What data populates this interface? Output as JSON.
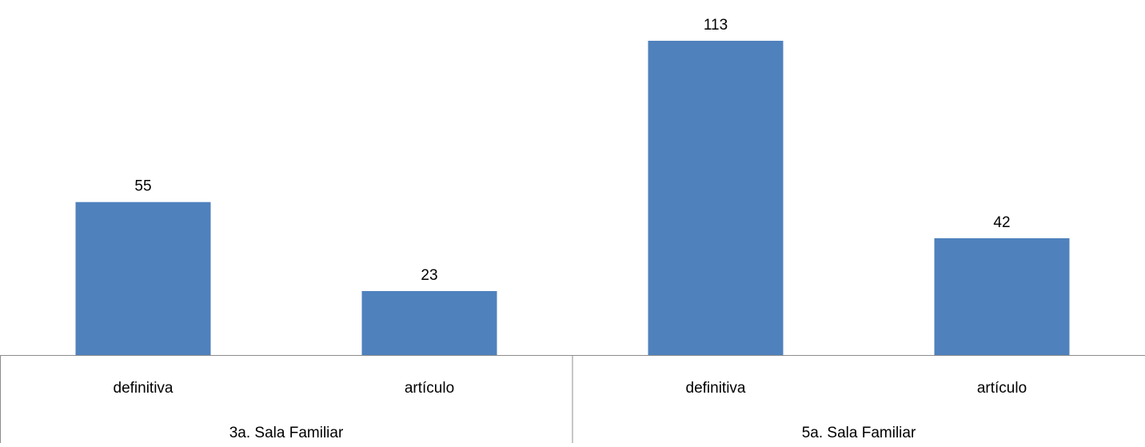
{
  "chart_data": {
    "type": "bar",
    "title": "",
    "xlabel": "",
    "ylabel": "",
    "ylim": [
      0,
      113
    ],
    "grid": false,
    "legend": "none",
    "groups": [
      {
        "label": "3a. Sala Familiar",
        "categories": [
          {
            "label": "definitiva",
            "value": 55
          },
          {
            "label": "artículo",
            "value": 23
          }
        ]
      },
      {
        "label": "5a. Sala Familiar",
        "categories": [
          {
            "label": "definitiva",
            "value": 113
          },
          {
            "label": "artículo",
            "value": 42
          }
        ]
      }
    ],
    "colors": {
      "bar": "#4f81bd",
      "axis": "#8c8c8c"
    }
  }
}
